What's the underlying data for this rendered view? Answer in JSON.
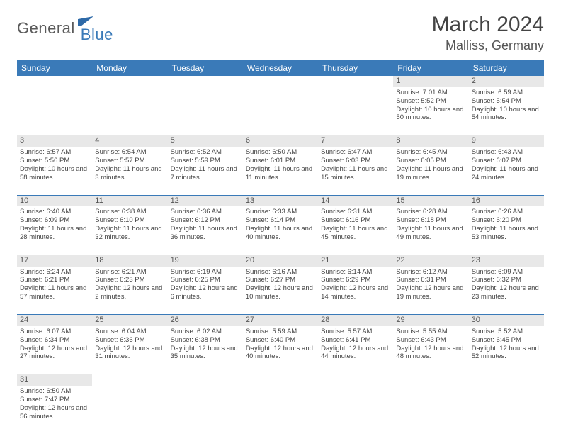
{
  "logo": {
    "part1": "General",
    "part2": "Blue"
  },
  "title": "March 2024",
  "location": "Malliss, Germany",
  "day_headers": [
    "Sunday",
    "Monday",
    "Tuesday",
    "Wednesday",
    "Thursday",
    "Friday",
    "Saturday"
  ],
  "colors": {
    "header_bg": "#3a7ab8",
    "daynum_bg": "#e8e8e8",
    "rule": "#3a7ab8"
  },
  "weeks": [
    [
      null,
      null,
      null,
      null,
      null,
      {
        "n": "1",
        "sr": "7:01 AM",
        "ss": "5:52 PM",
        "dl": "10 hours and 50 minutes."
      },
      {
        "n": "2",
        "sr": "6:59 AM",
        "ss": "5:54 PM",
        "dl": "10 hours and 54 minutes."
      }
    ],
    [
      {
        "n": "3",
        "sr": "6:57 AM",
        "ss": "5:56 PM",
        "dl": "10 hours and 58 minutes."
      },
      {
        "n": "4",
        "sr": "6:54 AM",
        "ss": "5:57 PM",
        "dl": "11 hours and 3 minutes."
      },
      {
        "n": "5",
        "sr": "6:52 AM",
        "ss": "5:59 PM",
        "dl": "11 hours and 7 minutes."
      },
      {
        "n": "6",
        "sr": "6:50 AM",
        "ss": "6:01 PM",
        "dl": "11 hours and 11 minutes."
      },
      {
        "n": "7",
        "sr": "6:47 AM",
        "ss": "6:03 PM",
        "dl": "11 hours and 15 minutes."
      },
      {
        "n": "8",
        "sr": "6:45 AM",
        "ss": "6:05 PM",
        "dl": "11 hours and 19 minutes."
      },
      {
        "n": "9",
        "sr": "6:43 AM",
        "ss": "6:07 PM",
        "dl": "11 hours and 24 minutes."
      }
    ],
    [
      {
        "n": "10",
        "sr": "6:40 AM",
        "ss": "6:09 PM",
        "dl": "11 hours and 28 minutes."
      },
      {
        "n": "11",
        "sr": "6:38 AM",
        "ss": "6:10 PM",
        "dl": "11 hours and 32 minutes."
      },
      {
        "n": "12",
        "sr": "6:36 AM",
        "ss": "6:12 PM",
        "dl": "11 hours and 36 minutes."
      },
      {
        "n": "13",
        "sr": "6:33 AM",
        "ss": "6:14 PM",
        "dl": "11 hours and 40 minutes."
      },
      {
        "n": "14",
        "sr": "6:31 AM",
        "ss": "6:16 PM",
        "dl": "11 hours and 45 minutes."
      },
      {
        "n": "15",
        "sr": "6:28 AM",
        "ss": "6:18 PM",
        "dl": "11 hours and 49 minutes."
      },
      {
        "n": "16",
        "sr": "6:26 AM",
        "ss": "6:20 PM",
        "dl": "11 hours and 53 minutes."
      }
    ],
    [
      {
        "n": "17",
        "sr": "6:24 AM",
        "ss": "6:21 PM",
        "dl": "11 hours and 57 minutes."
      },
      {
        "n": "18",
        "sr": "6:21 AM",
        "ss": "6:23 PM",
        "dl": "12 hours and 2 minutes."
      },
      {
        "n": "19",
        "sr": "6:19 AM",
        "ss": "6:25 PM",
        "dl": "12 hours and 6 minutes."
      },
      {
        "n": "20",
        "sr": "6:16 AM",
        "ss": "6:27 PM",
        "dl": "12 hours and 10 minutes."
      },
      {
        "n": "21",
        "sr": "6:14 AM",
        "ss": "6:29 PM",
        "dl": "12 hours and 14 minutes."
      },
      {
        "n": "22",
        "sr": "6:12 AM",
        "ss": "6:31 PM",
        "dl": "12 hours and 19 minutes."
      },
      {
        "n": "23",
        "sr": "6:09 AM",
        "ss": "6:32 PM",
        "dl": "12 hours and 23 minutes."
      }
    ],
    [
      {
        "n": "24",
        "sr": "6:07 AM",
        "ss": "6:34 PM",
        "dl": "12 hours and 27 minutes."
      },
      {
        "n": "25",
        "sr": "6:04 AM",
        "ss": "6:36 PM",
        "dl": "12 hours and 31 minutes."
      },
      {
        "n": "26",
        "sr": "6:02 AM",
        "ss": "6:38 PM",
        "dl": "12 hours and 35 minutes."
      },
      {
        "n": "27",
        "sr": "5:59 AM",
        "ss": "6:40 PM",
        "dl": "12 hours and 40 minutes."
      },
      {
        "n": "28",
        "sr": "5:57 AM",
        "ss": "6:41 PM",
        "dl": "12 hours and 44 minutes."
      },
      {
        "n": "29",
        "sr": "5:55 AM",
        "ss": "6:43 PM",
        "dl": "12 hours and 48 minutes."
      },
      {
        "n": "30",
        "sr": "5:52 AM",
        "ss": "6:45 PM",
        "dl": "12 hours and 52 minutes."
      }
    ],
    [
      {
        "n": "31",
        "sr": "6:50 AM",
        "ss": "7:47 PM",
        "dl": "12 hours and 56 minutes."
      },
      null,
      null,
      null,
      null,
      null,
      null
    ]
  ],
  "labels": {
    "sunrise": "Sunrise: ",
    "sunset": "Sunset: ",
    "daylight": "Daylight: "
  }
}
